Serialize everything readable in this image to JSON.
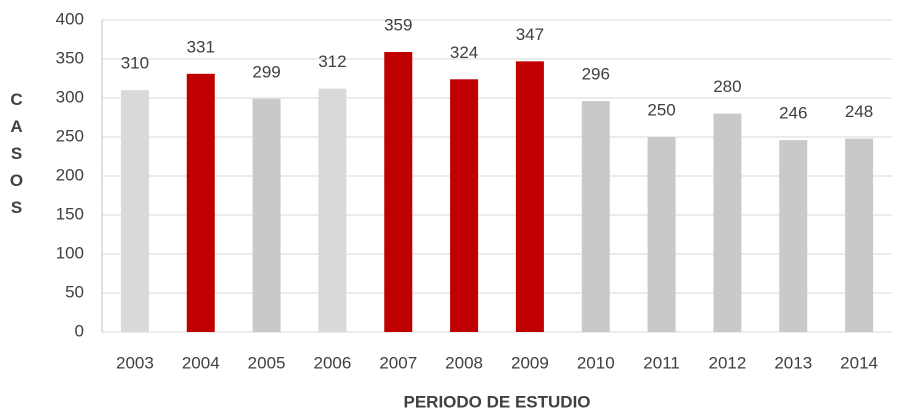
{
  "chart_data": {
    "type": "bar",
    "categories": [
      "2003",
      "2004",
      "2005",
      "2006",
      "2007",
      "2008",
      "2009",
      "2010",
      "2011",
      "2012",
      "2013",
      "2014"
    ],
    "values": [
      310,
      331,
      299,
      312,
      359,
      324,
      347,
      296,
      250,
      280,
      246,
      248
    ],
    "colors": [
      "#d9d9d9",
      "#c00000",
      "#c9c9c9",
      "#d9d9d9",
      "#c00000",
      "#c00000",
      "#c00000",
      "#c9c9c9",
      "#c9c9c9",
      "#c9c9c9",
      "#c9c9c9",
      "#c9c9c9"
    ],
    "x_label": "PERIODO DE ESTUDIO",
    "y_label": "CASOS",
    "ylim": [
      0,
      400
    ],
    "yticks": [
      0,
      50,
      100,
      150,
      200,
      250,
      300,
      350,
      400
    ],
    "grid": true
  }
}
